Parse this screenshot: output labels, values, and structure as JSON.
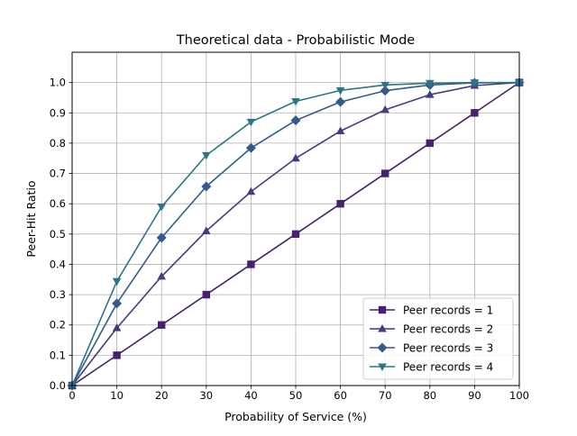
{
  "chart_data": {
    "type": "line",
    "title": "Theoretical data - Probabilistic Mode",
    "xlabel": "Probability of Service (%)",
    "ylabel": "Peer-Hit Ratio",
    "xlim": [
      0,
      100
    ],
    "ylim": [
      0,
      1.1
    ],
    "xticks": [
      "0",
      "10",
      "20",
      "30",
      "40",
      "50",
      "60",
      "70",
      "80",
      "90",
      "100"
    ],
    "yticks": [
      "0.0",
      "0.1",
      "0.2",
      "0.3",
      "0.4",
      "0.5",
      "0.6",
      "0.7",
      "0.8",
      "0.9",
      "1.0"
    ],
    "grid": true,
    "legend_position": "lower-right",
    "x": [
      0,
      10,
      20,
      30,
      40,
      50,
      60,
      70,
      80,
      90,
      100
    ],
    "series": [
      {
        "name": "Peer records = 1",
        "marker": "square",
        "color": "#45216f",
        "values": [
          0.0,
          0.1,
          0.2,
          0.3,
          0.4,
          0.5,
          0.6,
          0.7,
          0.8,
          0.9,
          1.0
        ]
      },
      {
        "name": "Peer records = 2",
        "marker": "triangle-up",
        "color": "#3f3d83",
        "values": [
          0.0,
          0.19,
          0.36,
          0.51,
          0.64,
          0.75,
          0.84,
          0.91,
          0.96,
          0.99,
          1.0
        ]
      },
      {
        "name": "Peer records = 3",
        "marker": "diamond",
        "color": "#355b8a",
        "values": [
          0.0,
          0.271,
          0.488,
          0.657,
          0.784,
          0.875,
          0.936,
          0.973,
          0.992,
          0.999,
          1.0
        ]
      },
      {
        "name": "Peer records = 4",
        "marker": "triangle-down",
        "color": "#2b7586",
        "values": [
          0.0,
          0.344,
          0.59,
          0.76,
          0.87,
          0.938,
          0.974,
          0.992,
          0.998,
          1.0,
          1.0
        ]
      }
    ]
  }
}
